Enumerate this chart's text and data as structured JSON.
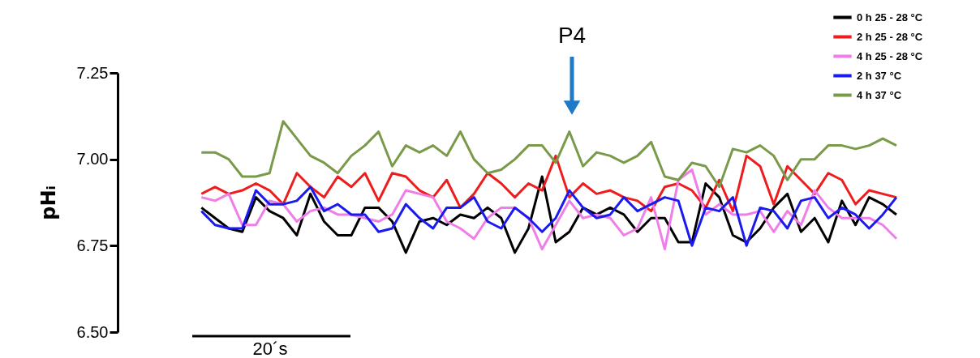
{
  "chart_data": {
    "type": "line",
    "ylabel": "pHᵢ",
    "annotations": [
      "P4",
      "20´s"
    ],
    "categories": [
      null,
      null,
      null,
      null,
      null,
      null,
      null,
      null,
      null,
      null,
      null,
      null,
      null,
      null,
      null,
      null,
      null,
      null,
      null,
      null,
      null,
      null,
      null,
      null,
      null,
      null,
      null,
      null,
      null,
      null,
      null,
      null,
      null,
      null,
      null,
      null,
      null,
      null,
      null,
      null,
      null,
      null,
      null,
      null,
      null,
      null,
      null,
      null,
      null,
      null,
      null,
      null
    ],
    "ylim": [
      6.5,
      7.25
    ],
    "yticks": [
      {
        "value": 6.5,
        "label": "6.50"
      },
      {
        "value": 6.75,
        "label": "6.75"
      },
      {
        "value": 7.0,
        "label": "7.00"
      },
      {
        "value": 7.25,
        "label": "7.25"
      }
    ],
    "grid": false,
    "legend": "top right",
    "marker": "none",
    "line_style": "solid",
    "series": [
      {
        "name": "0 h 25 - 28 °C",
        "color": "#000000",
        "values": [
          6.86,
          6.83,
          6.8,
          6.79,
          6.89,
          6.85,
          6.83,
          6.78,
          6.9,
          6.82,
          6.78,
          6.78,
          6.86,
          6.86,
          6.82,
          6.73,
          6.82,
          6.83,
          6.81,
          6.84,
          6.83,
          6.86,
          6.83,
          6.73,
          6.8,
          6.95,
          6.76,
          6.79,
          6.86,
          6.84,
          6.86,
          6.84,
          6.79,
          6.83,
          6.83,
          6.76,
          6.76,
          6.93,
          6.89,
          6.78,
          6.76,
          6.8,
          6.86,
          6.9,
          6.79,
          6.83,
          6.76,
          6.88,
          6.81,
          6.89,
          6.87,
          6.84
        ]
      },
      {
        "name": "2 h 25 - 28 °C",
        "color": "#ee1c1c",
        "values": [
          6.9,
          6.92,
          6.9,
          6.91,
          6.93,
          6.91,
          6.87,
          6.96,
          6.92,
          6.89,
          6.95,
          6.92,
          6.96,
          6.88,
          6.96,
          6.95,
          6.91,
          6.89,
          6.94,
          6.86,
          6.9,
          6.96,
          6.93,
          6.89,
          6.93,
          6.91,
          7.01,
          6.89,
          6.93,
          6.9,
          6.91,
          6.89,
          6.88,
          6.85,
          6.92,
          6.93,
          6.91,
          6.86,
          6.94,
          6.85,
          7.01,
          6.98,
          6.87,
          6.98,
          6.94,
          6.9,
          6.96,
          6.94,
          6.87,
          6.91,
          6.9,
          6.89
        ]
      },
      {
        "name": "4 h 25 - 28 °C",
        "color": "#f07ee8",
        "values": [
          6.89,
          6.88,
          6.9,
          6.81,
          6.81,
          6.88,
          6.87,
          6.82,
          6.85,
          6.86,
          6.84,
          6.84,
          6.83,
          6.82,
          6.84,
          6.91,
          6.9,
          6.89,
          6.82,
          6.8,
          6.77,
          6.83,
          6.86,
          6.86,
          6.83,
          6.74,
          6.81,
          6.88,
          6.83,
          6.84,
          6.83,
          6.78,
          6.8,
          6.89,
          6.74,
          6.94,
          6.97,
          6.84,
          6.87,
          6.84,
          6.84,
          6.85,
          6.79,
          6.85,
          6.81,
          6.91,
          6.86,
          6.83,
          6.83,
          6.83,
          6.81,
          6.77
        ]
      },
      {
        "name": "2 h 37 °C",
        "color": "#1a1aee",
        "values": [
          6.85,
          6.81,
          6.8,
          6.8,
          6.91,
          6.87,
          6.87,
          6.88,
          6.92,
          6.85,
          6.87,
          6.84,
          6.84,
          6.79,
          6.8,
          6.87,
          6.83,
          6.8,
          6.86,
          6.86,
          6.89,
          6.82,
          6.8,
          6.86,
          6.83,
          6.79,
          6.83,
          6.91,
          6.86,
          6.83,
          6.84,
          6.89,
          6.85,
          6.87,
          6.89,
          6.88,
          6.75,
          6.86,
          6.85,
          6.89,
          6.75,
          6.86,
          6.85,
          6.8,
          6.88,
          6.89,
          6.83,
          6.86,
          6.84,
          6.8,
          6.84,
          6.89
        ]
      },
      {
        "name": "4 h 37 °C",
        "color": "#7a9a4a",
        "values": [
          7.02,
          7.02,
          7.0,
          6.95,
          6.95,
          6.96,
          7.11,
          7.06,
          7.01,
          6.99,
          6.96,
          7.01,
          7.04,
          7.08,
          6.98,
          7.04,
          7.02,
          7.04,
          7.01,
          7.08,
          7.0,
          6.96,
          6.97,
          7.0,
          7.04,
          7.04,
          6.99,
          7.08,
          6.98,
          7.02,
          7.01,
          6.99,
          7.01,
          7.05,
          6.95,
          6.94,
          6.99,
          6.98,
          6.92,
          7.03,
          7.02,
          7.04,
          7.01,
          6.94,
          7.0,
          7.0,
          7.04,
          7.04,
          7.03,
          7.04,
          7.06,
          7.04
        ]
      }
    ]
  }
}
